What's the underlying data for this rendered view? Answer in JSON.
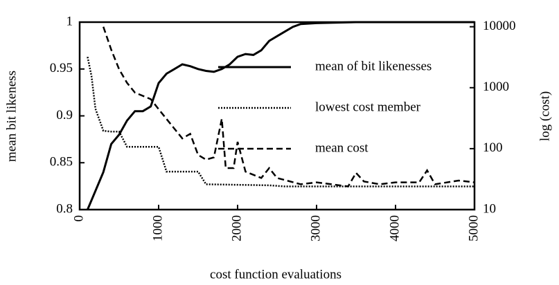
{
  "chart_data": {
    "type": "line",
    "x_label": "cost function evaluations",
    "y_label": "mean bit likeness",
    "y2_label": "log (cost)",
    "xlim": [
      0,
      5000
    ],
    "xticks": [
      0,
      1000,
      2000,
      3000,
      4000,
      5000
    ],
    "ylim": [
      0.8,
      1
    ],
    "yticks": [
      0.8,
      0.85,
      0.9,
      0.95,
      1
    ],
    "y2lim": [
      10,
      11900
    ],
    "y2ticks": [
      10,
      100,
      1000,
      10000
    ],
    "y2scale": "log",
    "series": [
      {
        "name": "mean of bit likenesses",
        "color": "#000000",
        "style": "solid",
        "axis": "y",
        "x": [
          100,
          200,
          300,
          400,
          500,
          600,
          700,
          800,
          900,
          1000,
          1100,
          1200,
          1300,
          1400,
          1500,
          1600,
          1700,
          1800,
          1900,
          2000,
          2100,
          2200,
          2300,
          2400,
          2500,
          2600,
          2700,
          2800,
          3000,
          3500,
          4000,
          4500,
          5000
        ],
        "values": [
          0.8,
          0.82,
          0.84,
          0.87,
          0.88,
          0.895,
          0.905,
          0.905,
          0.91,
          0.935,
          0.945,
          0.95,
          0.955,
          0.953,
          0.95,
          0.948,
          0.947,
          0.95,
          0.955,
          0.963,
          0.966,
          0.965,
          0.97,
          0.98,
          0.985,
          0.99,
          0.995,
          0.998,
          0.999,
          1,
          1,
          1,
          1
        ]
      },
      {
        "name": "lowest cost member",
        "color": "#000000",
        "style": "dotted",
        "axis": "y2",
        "x": [
          100,
          150,
          200,
          300,
          400,
          500,
          600,
          1000,
          1100,
          1500,
          1600,
          2400,
          2600,
          5000
        ],
        "values": [
          3200,
          1550,
          450,
          196,
          190,
          190,
          107,
          107,
          42,
          42,
          26,
          25,
          24,
          24
        ]
      },
      {
        "name": "mean cost",
        "color": "#000000",
        "style": "dashed",
        "axis": "y2",
        "x": [
          300,
          400,
          500,
          600,
          700,
          900,
          1000,
          1200,
          1300,
          1400,
          1500,
          1600,
          1700,
          1800,
          1850,
          1950,
          2000,
          2100,
          2300,
          2400,
          2500,
          2800,
          3000,
          3400,
          3500,
          3600,
          3800,
          4000,
          4300,
          4400,
          4500,
          4800,
          5000
        ],
        "values": [
          10000,
          4200,
          2000,
          1200,
          830,
          650,
          445,
          212,
          147,
          175,
          79,
          66,
          72,
          309,
          48,
          48,
          129,
          42,
          33,
          48,
          33,
          26,
          28,
          24,
          40,
          29,
          26,
          28,
          28,
          44,
          26,
          30,
          28
        ]
      }
    ]
  }
}
